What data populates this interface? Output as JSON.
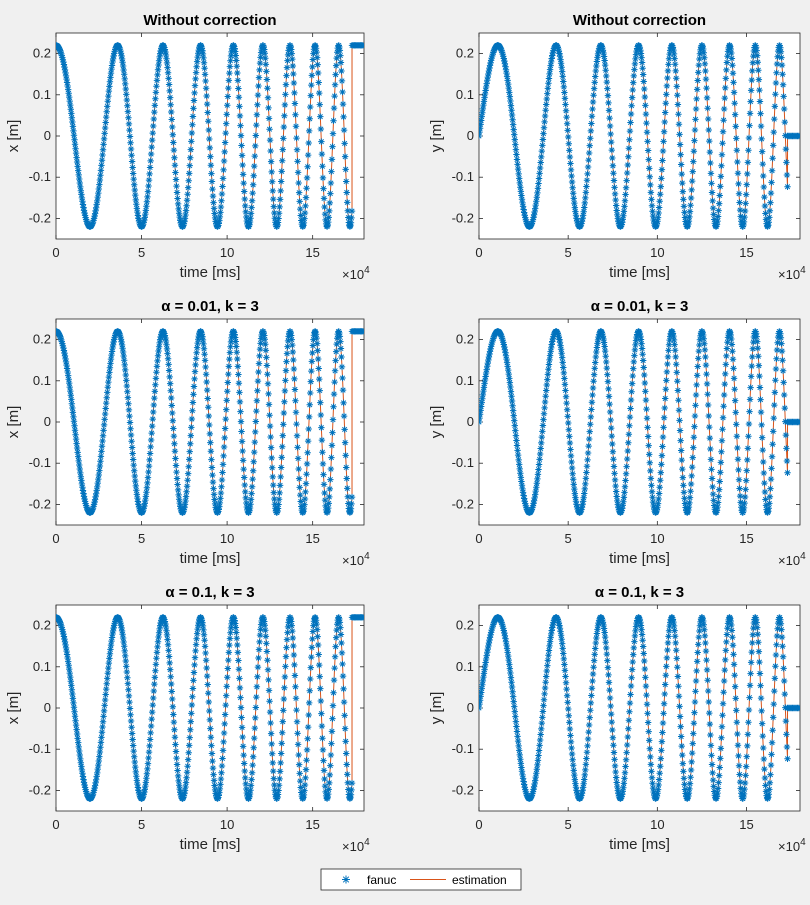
{
  "colors": {
    "fanuc": "#0072bd",
    "estimation": "#d95319"
  },
  "legend": {
    "placement": "bottom-center",
    "items": [
      "fanuc",
      "estimation"
    ]
  },
  "chart_data": [
    {
      "type": "line",
      "panel": "row1-left",
      "title": "Without correction",
      "xlabel": "time [ms]",
      "ylabel": "x [m]",
      "x_multiplier": "×10^4",
      "x_exponent": "4",
      "xlim": [
        0,
        18
      ],
      "ylim": [
        -0.25,
        0.25
      ],
      "xticks": [
        0,
        5,
        10,
        15
      ],
      "yticks": [
        0.2,
        0.1,
        0,
        -0.1,
        -0.2
      ],
      "series": [
        {
          "name": "fanuc",
          "marker": "*",
          "signal": "x",
          "amplitude": 0.22,
          "freq_start": 0.22,
          "freq_rate": 0.032,
          "end_x": 17.3,
          "end_value": 0.22
        },
        {
          "name": "estimation",
          "style": "line",
          "signal": "x",
          "amplitude": 0.22,
          "freq_start": 0.22,
          "freq_rate": 0.032,
          "end_x": 17.3,
          "end_value": 0.22
        }
      ]
    },
    {
      "type": "line",
      "panel": "row1-right",
      "title": "Without correction",
      "xlabel": "time [ms]",
      "ylabel": "y [m]",
      "x_multiplier": "×10^4",
      "x_exponent": "4",
      "xlim": [
        0,
        18
      ],
      "ylim": [
        -0.25,
        0.25
      ],
      "xticks": [
        0,
        5,
        10,
        15
      ],
      "yticks": [
        0.2,
        0.1,
        0,
        -0.1,
        -0.2
      ],
      "series": [
        {
          "name": "fanuc",
          "marker": "*",
          "signal": "y",
          "amplitude": 0.22,
          "freq_start": 0.22,
          "freq_rate": 0.032,
          "end_x": 17.3,
          "end_value": 0
        },
        {
          "name": "estimation",
          "style": "line",
          "signal": "y",
          "amplitude": 0.22,
          "freq_start": 0.22,
          "freq_rate": 0.032,
          "end_x": 17.3,
          "end_value": 0
        }
      ]
    },
    {
      "type": "line",
      "panel": "row2-left",
      "title": "α = 0.01, k = 3",
      "xlabel": "time [ms]",
      "ylabel": "x [m]",
      "x_multiplier": "×10^4",
      "x_exponent": "4",
      "xlim": [
        0,
        18
      ],
      "ylim": [
        -0.25,
        0.25
      ],
      "xticks": [
        0,
        5,
        10,
        15
      ],
      "yticks": [
        0.2,
        0.1,
        0,
        -0.1,
        -0.2
      ],
      "series": [
        {
          "name": "fanuc",
          "marker": "*",
          "signal": "x",
          "amplitude": 0.22,
          "freq_start": 0.22,
          "freq_rate": 0.032,
          "end_x": 17.3,
          "end_value": 0.22
        },
        {
          "name": "estimation",
          "style": "line",
          "signal": "x",
          "amplitude": 0.22,
          "freq_start": 0.22,
          "freq_rate": 0.032,
          "end_x": 17.3,
          "end_value": 0.22
        }
      ]
    },
    {
      "type": "line",
      "panel": "row2-right",
      "title": "α = 0.01, k = 3",
      "xlabel": "time [ms]",
      "ylabel": "y [m]",
      "x_multiplier": "×10^4",
      "x_exponent": "4",
      "xlim": [
        0,
        18
      ],
      "ylim": [
        -0.25,
        0.25
      ],
      "xticks": [
        0,
        5,
        10,
        15
      ],
      "yticks": [
        0.2,
        0.1,
        0,
        -0.1,
        -0.2
      ],
      "series": [
        {
          "name": "fanuc",
          "marker": "*",
          "signal": "y",
          "amplitude": 0.22,
          "freq_start": 0.22,
          "freq_rate": 0.032,
          "end_x": 17.3,
          "end_value": 0
        },
        {
          "name": "estimation",
          "style": "line",
          "signal": "y",
          "amplitude": 0.22,
          "freq_start": 0.22,
          "freq_rate": 0.032,
          "end_x": 17.3,
          "end_value": 0
        }
      ]
    },
    {
      "type": "line",
      "panel": "row3-left",
      "title": "α = 0.1, k = 3",
      "xlabel": "time [ms]",
      "ylabel": "x [m]",
      "x_multiplier": "×10^4",
      "x_exponent": "4",
      "xlim": [
        0,
        18
      ],
      "ylim": [
        -0.25,
        0.25
      ],
      "xticks": [
        0,
        5,
        10,
        15
      ],
      "yticks": [
        0.2,
        0.1,
        0,
        -0.1,
        -0.2
      ],
      "series": [
        {
          "name": "fanuc",
          "marker": "*",
          "signal": "x",
          "amplitude": 0.22,
          "freq_start": 0.22,
          "freq_rate": 0.032,
          "end_x": 17.3,
          "end_value": 0.22
        },
        {
          "name": "estimation",
          "style": "line",
          "signal": "x",
          "amplitude": 0.22,
          "freq_start": 0.22,
          "freq_rate": 0.032,
          "end_x": 17.3,
          "end_value": 0.22
        }
      ]
    },
    {
      "type": "line",
      "panel": "row3-right",
      "title": "α = 0.1, k = 3",
      "xlabel": "time [ms]",
      "ylabel": "y [m]",
      "x_multiplier": "×10^4",
      "x_exponent": "4",
      "xlim": [
        0,
        18
      ],
      "ylim": [
        -0.25,
        0.25
      ],
      "xticks": [
        0,
        5,
        10,
        15
      ],
      "yticks": [
        0.2,
        0.1,
        0,
        -0.1,
        -0.2
      ],
      "series": [
        {
          "name": "fanuc",
          "marker": "*",
          "signal": "y",
          "amplitude": 0.22,
          "freq_start": 0.22,
          "freq_rate": 0.032,
          "end_x": 17.3,
          "end_value": 0
        },
        {
          "name": "estimation",
          "style": "line",
          "signal": "y",
          "amplitude": 0.22,
          "freq_start": 0.22,
          "freq_rate": 0.032,
          "end_x": 17.3,
          "end_value": 0
        }
      ]
    }
  ]
}
